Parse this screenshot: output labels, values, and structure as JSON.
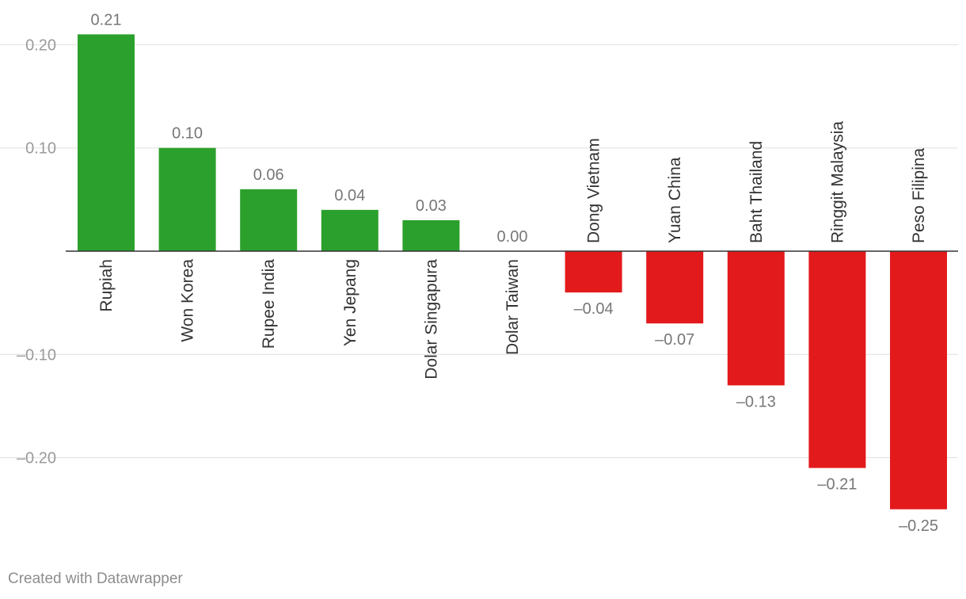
{
  "chart_data": {
    "type": "bar",
    "categories": [
      "Rupiah",
      "Won Korea",
      "Rupee India",
      "Yen Jepang",
      "Dolar Singapura",
      "Dolar Taiwan",
      "Dong Vietnam",
      "Yuan China",
      "Baht Thailand",
      "Ringgit Malaysia",
      "Peso Filipina"
    ],
    "values": [
      0.21,
      0.1,
      0.06,
      0.04,
      0.03,
      0.0,
      -0.04,
      -0.07,
      -0.13,
      -0.21,
      -0.25
    ],
    "value_labels": [
      "0.21",
      "0.10",
      "0.06",
      "0.04",
      "0.03",
      "0.00",
      "–0.04",
      "–0.07",
      "–0.13",
      "–0.21",
      "–0.25"
    ],
    "yticks": [
      0.2,
      0.1,
      -0.1,
      -0.2
    ],
    "ytick_labels": [
      "0.20",
      "0.10",
      "–0.10",
      "–0.20"
    ],
    "ylim": [
      -0.27,
      0.22
    ],
    "grid": true,
    "colors": {
      "positive": "#2ca02c",
      "negative": "#e31a1c",
      "grid": "#e0e0e0",
      "axis": "#333333",
      "value_label": "#777777",
      "tick_label": "#9a9a9a",
      "category_label": "#333333"
    }
  },
  "footer": {
    "credit": "Created with Datawrapper"
  }
}
